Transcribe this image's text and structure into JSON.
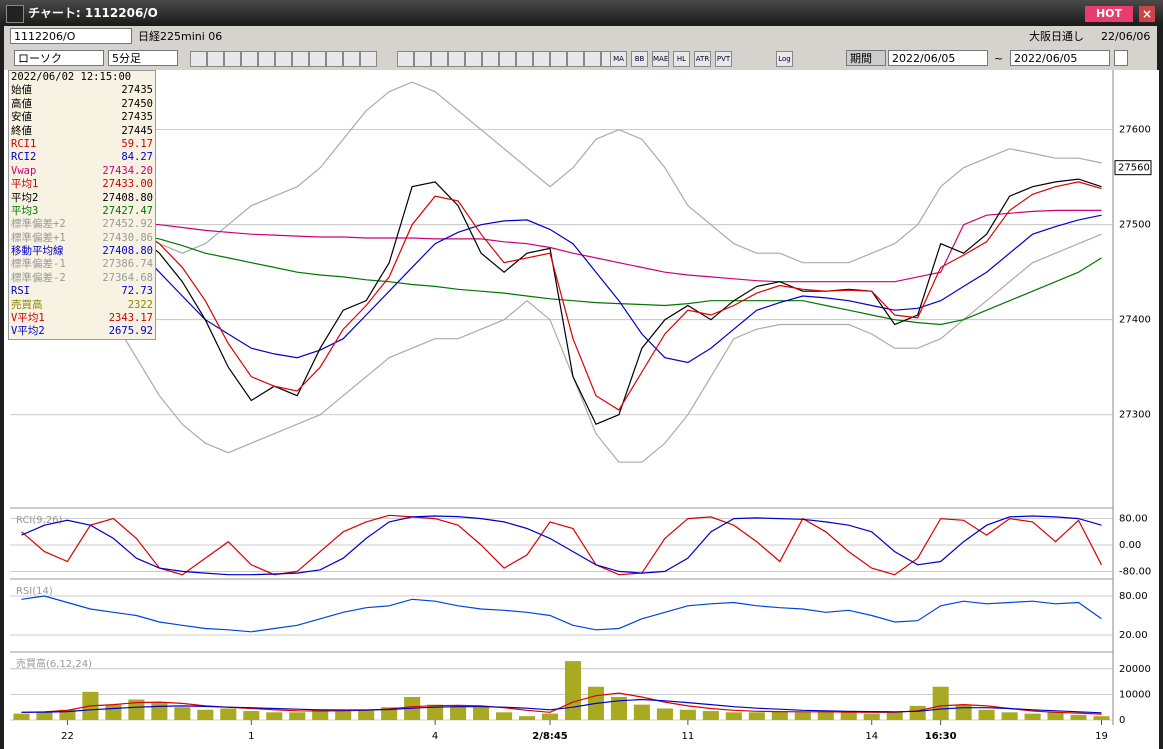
{
  "window": {
    "title": "チャート: 1112206/O",
    "hot": "HOT"
  },
  "toolbar": {
    "symbol": "1112206/O",
    "name": "日経225mini 06",
    "session": "大阪日通し",
    "date": "22/06/06",
    "chart_kind": "ローソク",
    "interval": "5分足",
    "period": "期間",
    "from": "2022/06/05",
    "tilde": "~",
    "to": "2022/06/05",
    "buttons": [
      "MA",
      "BB",
      "MAE",
      "HL",
      "ATR",
      "PVT",
      "Log"
    ]
  },
  "info_panel": {
    "time": "2022/06/02 12:15:00",
    "rows": [
      {
        "label": "始値",
        "value": "27435",
        "color": "#000000"
      },
      {
        "label": "高値",
        "value": "27450",
        "color": "#000000"
      },
      {
        "label": "安値",
        "value": "27435",
        "color": "#000000"
      },
      {
        "label": "終値",
        "value": "27445",
        "color": "#000000"
      },
      {
        "label": "RCI1",
        "value": "59.17",
        "color": "#cc0000"
      },
      {
        "label": "RCI2",
        "value": "84.27",
        "color": "#0000cc"
      },
      {
        "label": "Vwap",
        "value": "27434.20",
        "color": "#cc0077"
      },
      {
        "label": "平均1",
        "value": "27433.00",
        "color": "#cc0000"
      },
      {
        "label": "平均2",
        "value": "27408.80",
        "color": "#000000"
      },
      {
        "label": "平均3",
        "value": "27427.47",
        "color": "#007700"
      },
      {
        "label": "標準偏差+2",
        "value": "27452.92",
        "color": "#999999"
      },
      {
        "label": "標準偏差+1",
        "value": "27430.86",
        "color": "#999999"
      },
      {
        "label": "移動平均線",
        "value": "27408.80",
        "color": "#0000cc"
      },
      {
        "label": "標準偏差-1",
        "value": "27386.74",
        "color": "#999999"
      },
      {
        "label": "標準偏差-2",
        "value": "27364.68",
        "color": "#999999"
      },
      {
        "label": "RSI",
        "value": "72.73",
        "color": "#0000cc"
      },
      {
        "label": "売買高",
        "value": "2322",
        "color": "#888800"
      },
      {
        "label": "V平均1",
        "value": "2343.17",
        "color": "#cc0000"
      },
      {
        "label": "V平均2",
        "value": "2675.92",
        "color": "#0000cc"
      }
    ]
  },
  "chart_data": [
    {
      "type": "line",
      "ylim": [
        27205,
        27647
      ],
      "yticks": [
        27300,
        27400,
        27500,
        27600
      ],
      "grid": true,
      "current_price": 27560,
      "series": [
        {
          "color": "#aaaaaa",
          "values": [
            27600,
            27590,
            27580,
            27560,
            27530,
            27500,
            27480,
            27470,
            27480,
            27500,
            27520,
            27530,
            27540,
            27560,
            27590,
            27620,
            27640,
            27650,
            27640,
            27620,
            27600,
            27580,
            27560,
            27540,
            27560,
            27590,
            27600,
            27590,
            27560,
            27520,
            27500,
            27480,
            27470,
            27470,
            27460,
            27460,
            27460,
            27470,
            27480,
            27500,
            27540,
            27560,
            27570,
            27580,
            27575,
            27570,
            27570,
            27565
          ]
        },
        {
          "color": "#aaaaaa",
          "values": [
            27540,
            27520,
            27490,
            27440,
            27400,
            27360,
            27320,
            27290,
            27270,
            27260,
            27270,
            27280,
            27290,
            27300,
            27320,
            27340,
            27360,
            27370,
            27380,
            27380,
            27390,
            27400,
            27420,
            27400,
            27340,
            27280,
            27250,
            27250,
            27270,
            27300,
            27340,
            27380,
            27390,
            27395,
            27395,
            27395,
            27395,
            27385,
            27370,
            27370,
            27380,
            27400,
            27420,
            27440,
            27460,
            27470,
            27480,
            27490
          ]
        },
        {
          "color": "#cc0077",
          "values": [
            27520,
            27516,
            27512,
            27508,
            27505,
            27502,
            27500,
            27497,
            27494,
            27492,
            27490,
            27489,
            27488,
            27487,
            27487,
            27486,
            27486,
            27486,
            27485,
            27485,
            27485,
            27482,
            27480,
            27476,
            27470,
            27465,
            27460,
            27455,
            27450,
            27447,
            27445,
            27443,
            27441,
            27440,
            27440,
            27440,
            27440,
            27440,
            27440,
            27445,
            27450,
            27500,
            27510,
            27512,
            27514,
            27515,
            27515,
            27515
          ]
        },
        {
          "color": "#007700",
          "values": [
            27505,
            27503,
            27500,
            27498,
            27495,
            27490,
            27485,
            27478,
            27470,
            27465,
            27460,
            27455,
            27450,
            27447,
            27445,
            27442,
            27440,
            27437,
            27435,
            27432,
            27430,
            27428,
            27425,
            27422,
            27420,
            27418,
            27417,
            27416,
            27415,
            27417,
            27420,
            27420,
            27420,
            27420,
            27420,
            27415,
            27410,
            27405,
            27400,
            27397,
            27395,
            27400,
            27410,
            27420,
            27430,
            27440,
            27450,
            27465
          ]
        },
        {
          "color": "#0000cc",
          "values": [
            27560,
            27552,
            27540,
            27520,
            27500,
            27475,
            27450,
            27425,
            27400,
            27385,
            27370,
            27364,
            27360,
            27368,
            27380,
            27405,
            27430,
            27455,
            27480,
            27492,
            27500,
            27504,
            27505,
            27495,
            27480,
            27450,
            27420,
            27385,
            27360,
            27355,
            27370,
            27390,
            27410,
            27418,
            27425,
            27423,
            27420,
            27415,
            27410,
            27412,
            27420,
            27435,
            27450,
            27470,
            27490,
            27498,
            27505,
            27510
          ]
        },
        {
          "color": "#000000",
          "values": [
            27520,
            27515,
            27510,
            27500,
            27505,
            27490,
            27470,
            27440,
            27400,
            27350,
            27315,
            27330,
            27320,
            27370,
            27410,
            27420,
            27460,
            27540,
            27545,
            27520,
            27470,
            27450,
            27470,
            27475,
            27340,
            27290,
            27300,
            27370,
            27400,
            27415,
            27400,
            27420,
            27435,
            27440,
            27430,
            27430,
            27432,
            27430,
            27395,
            27405,
            27480,
            27470,
            27490,
            27530,
            27540,
            27545,
            27548,
            27540
          ]
        },
        {
          "color": "#dd0000",
          "values": [
            27515,
            27515,
            27512,
            27505,
            27503,
            27495,
            27480,
            27455,
            27420,
            27375,
            27340,
            27330,
            27325,
            27350,
            27390,
            27415,
            27445,
            27500,
            27530,
            27525,
            27490,
            27460,
            27465,
            27470,
            27380,
            27320,
            27305,
            27345,
            27385,
            27410,
            27405,
            27415,
            27428,
            27436,
            27432,
            27430,
            27431,
            27430,
            27405,
            27402,
            27455,
            27468,
            27482,
            27515,
            27532,
            27540,
            27545,
            27538
          ]
        }
      ]
    },
    {
      "type": "line",
      "title": "RCI(9,26)",
      "ylim": [
        -100,
        100
      ],
      "yticks": [
        {
          "value": 80,
          "label": "80.00"
        },
        {
          "value": 0,
          "label": "0.00"
        },
        {
          "value": -80,
          "label": "-80.00"
        }
      ],
      "grid": true,
      "series": [
        {
          "color": "#dd0000",
          "values": [
            40,
            -20,
            -50,
            60,
            80,
            20,
            -70,
            -90,
            -40,
            10,
            -60,
            -90,
            -80,
            -20,
            40,
            70,
            90,
            85,
            80,
            60,
            0,
            -70,
            -30,
            70,
            50,
            -60,
            -90,
            -85,
            20,
            80,
            85,
            60,
            10,
            -50,
            80,
            40,
            -20,
            -70,
            -90,
            -40,
            80,
            75,
            30,
            80,
            70,
            10,
            75,
            -60
          ]
        },
        {
          "color": "#0000cc",
          "values": [
            30,
            60,
            75,
            60,
            20,
            -40,
            -70,
            -80,
            -85,
            -90,
            -90,
            -88,
            -85,
            -75,
            -40,
            20,
            70,
            85,
            88,
            86,
            80,
            70,
            50,
            20,
            -20,
            -60,
            -80,
            -85,
            -80,
            -40,
            40,
            80,
            82,
            80,
            78,
            70,
            60,
            40,
            -20,
            -60,
            -50,
            10,
            60,
            85,
            88,
            85,
            80,
            60
          ]
        }
      ]
    },
    {
      "type": "line",
      "title": "RSI(14)",
      "ylim": [
        0,
        100
      ],
      "yticks": [
        {
          "value": 80,
          "label": "80.00"
        },
        {
          "value": 20,
          "label": "20.00"
        }
      ],
      "grid": true,
      "series": [
        {
          "color": "#0044dd",
          "values": [
            75,
            80,
            70,
            60,
            55,
            50,
            40,
            35,
            30,
            28,
            25,
            30,
            35,
            45,
            55,
            62,
            65,
            75,
            72,
            65,
            60,
            58,
            55,
            50,
            35,
            28,
            30,
            45,
            55,
            65,
            68,
            70,
            65,
            62,
            60,
            55,
            58,
            50,
            40,
            42,
            65,
            72,
            68,
            70,
            72,
            68,
            70,
            45
          ]
        }
      ]
    },
    {
      "type": "bar",
      "title": "売買高(6,12,24)",
      "ylim": [
        0,
        25000
      ],
      "yticks": [
        0,
        10000,
        20000
      ],
      "grid": true,
      "color": "#aaaa22",
      "categories": [
        null,
        null,
        "22",
        null,
        null,
        null,
        null,
        null,
        null,
        null,
        "1",
        null,
        null,
        null,
        null,
        null,
        null,
        null,
        "4",
        null,
        null,
        null,
        null,
        "2/8:45",
        null,
        null,
        null,
        null,
        null,
        "11",
        null,
        null,
        null,
        null,
        null,
        null,
        null,
        "14",
        null,
        null,
        "16:30",
        null,
        null,
        null,
        null,
        null,
        null,
        "19"
      ],
      "values": [
        2500,
        3000,
        4000,
        11000,
        6000,
        8000,
        7000,
        5000,
        4000,
        4500,
        3500,
        3000,
        3000,
        4000,
        3500,
        4000,
        5000,
        9000,
        6000,
        5500,
        5000,
        3000,
        1500,
        2500,
        23000,
        13000,
        9000,
        6000,
        4500,
        4000,
        3500,
        3000,
        3000,
        3500,
        3000,
        3500,
        3000,
        2500,
        3000,
        5500,
        13000,
        6000,
        4000,
        3000,
        2500,
        3000,
        2000,
        1500
      ],
      "series": [
        {
          "color": "#dd0000",
          "values": [
            3000,
            3200,
            3800,
            5500,
            6000,
            6800,
            7000,
            6500,
            5500,
            5000,
            4500,
            4000,
            3600,
            3500,
            3600,
            3800,
            4300,
            5200,
            5600,
            5700,
            5500,
            4800,
            3800,
            3000,
            7000,
            9500,
            10500,
            9000,
            7000,
            5500,
            4500,
            3800,
            3400,
            3300,
            3200,
            3200,
            3100,
            3000,
            3000,
            3600,
            5500,
            6000,
            5500,
            4500,
            3500,
            3000,
            2700,
            2300
          ]
        },
        {
          "color": "#0000cc",
          "values": [
            3000,
            3100,
            3300,
            4000,
            4500,
            5000,
            5300,
            5500,
            5300,
            5000,
            4800,
            4500,
            4200,
            4000,
            3900,
            3900,
            4100,
            4600,
            5000,
            5200,
            5200,
            5000,
            4600,
            4000,
            5000,
            6500,
            7500,
            8000,
            7500,
            6800,
            6000,
            5200,
            4600,
            4200,
            3800,
            3600,
            3400,
            3300,
            3200,
            3400,
            4300,
            4800,
            4800,
            4500,
            4000,
            3600,
            3200,
            2800
          ]
        }
      ]
    }
  ]
}
